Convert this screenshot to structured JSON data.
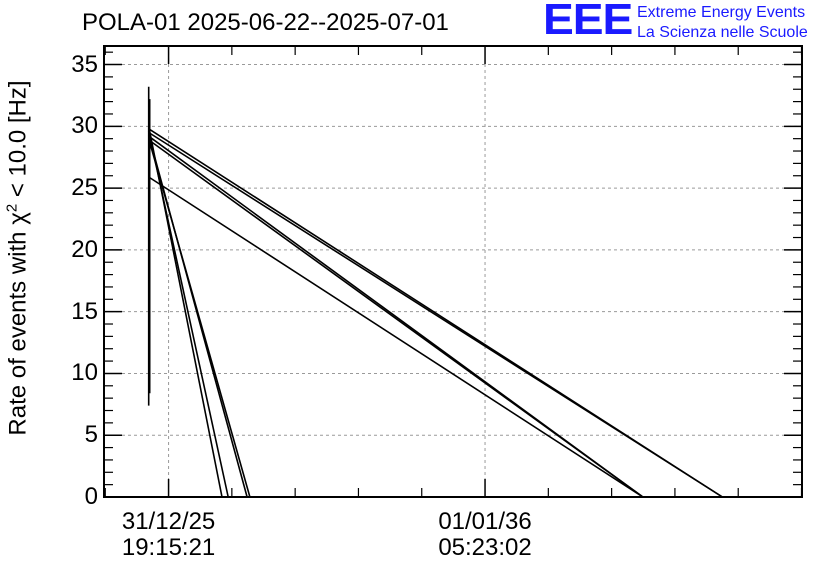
{
  "title": "POLA-01 2025-06-22--2025-07-01",
  "logo": {
    "mark": "EEE",
    "line1": "Extreme Energy Events",
    "line2": "La Scienza nelle Scuole",
    "color": "#1a1aff"
  },
  "chart_data": {
    "type": "line",
    "ylabel_prefix": "Rate of events with ",
    "ylabel_symbol": "χ",
    "ylabel_sup": "2",
    "ylabel_suffix": " < 10.0 [Hz]",
    "ylim": [
      0,
      36.5
    ],
    "yticks": [
      0,
      5,
      10,
      15,
      20,
      25,
      30,
      35
    ],
    "xlim": [
      0,
      1
    ],
    "xticks": [
      {
        "x": 0.0925,
        "date": "31/12/25",
        "time": "19:15:21"
      },
      {
        "x": 0.5459,
        "date": "01/01/36",
        "time": "05:23:02"
      }
    ],
    "grid": true,
    "line_color": "#000000",
    "series": [
      {
        "points": [
          [
            0.064,
            33.2
          ],
          [
            0.064,
            7.4
          ]
        ]
      },
      {
        "points": [
          [
            0.0655,
            32.2
          ],
          [
            0.0655,
            8.4
          ]
        ]
      },
      {
        "points": [
          [
            0.064,
            29.8
          ],
          [
            0.886,
            0
          ]
        ]
      },
      {
        "points": [
          [
            0.064,
            29.5
          ],
          [
            0.886,
            0
          ]
        ]
      },
      {
        "points": [
          [
            0.064,
            29.2
          ],
          [
            0.772,
            0
          ]
        ]
      },
      {
        "points": [
          [
            0.064,
            28.9
          ],
          [
            0.772,
            0
          ]
        ]
      },
      {
        "points": [
          [
            0.064,
            25.9
          ],
          [
            0.772,
            0
          ]
        ]
      },
      {
        "points": [
          [
            0.064,
            30.0
          ],
          [
            0.169,
            0
          ]
        ]
      },
      {
        "points": [
          [
            0.064,
            29.6
          ],
          [
            0.178,
            0
          ]
        ]
      },
      {
        "points": [
          [
            0.064,
            29.3
          ],
          [
            0.205,
            0
          ]
        ]
      },
      {
        "points": [
          [
            0.064,
            29.0
          ],
          [
            0.209,
            0
          ]
        ]
      }
    ]
  }
}
